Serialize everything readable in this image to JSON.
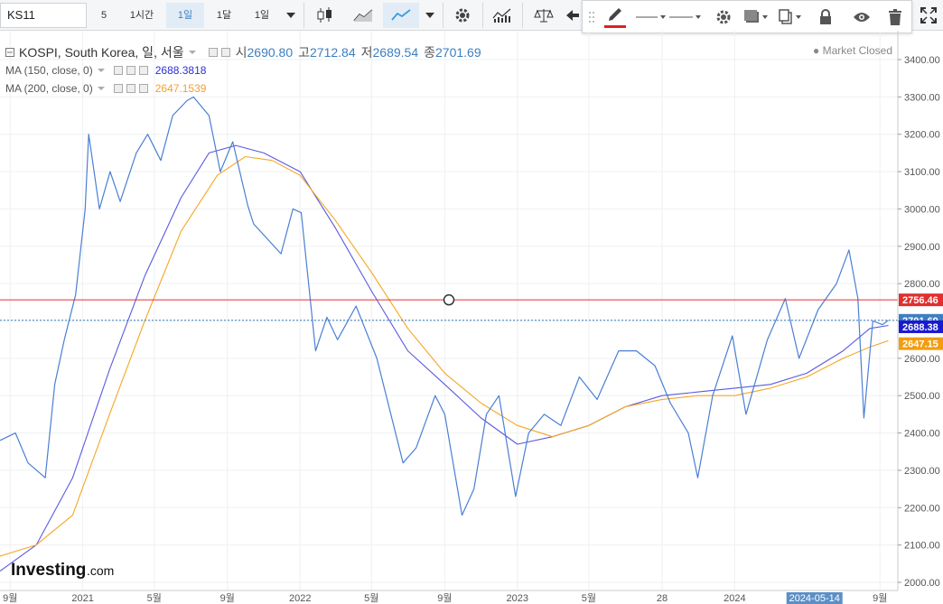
{
  "toolbar": {
    "symbol": "KS11",
    "intervals": [
      "5",
      "1시간",
      "1일",
      "1달",
      "1일"
    ],
    "active_interval_index": 2
  },
  "drawbar": {
    "accent_color": "#e02020"
  },
  "legend": {
    "title": "KOSPI, South Korea, 일, 서울",
    "open_label": "시",
    "open": "2690.80",
    "high_label": "고",
    "high": "2712.84",
    "low_label": "저",
    "low": "2689.54",
    "close_label": "종",
    "close": "2701.69",
    "ma150_label": "MA (150, close, 0)",
    "ma150_value": "2688.3818",
    "ma200_label": "MA (200, close, 0)",
    "ma200_value": "2647.1539",
    "market_status": "Market Closed"
  },
  "colors": {
    "price_line": "#4a7fd4",
    "ma150": "#5a5ae0",
    "ma200": "#f5a623",
    "hline": "#e03030",
    "last_price_bg": "#3c7fc2",
    "ma150_bg": "#1a1ad0",
    "ma200_bg": "#f39c12"
  },
  "brand": {
    "name": "Investing",
    "suffix": ".com"
  },
  "chart_data": {
    "type": "line",
    "x_tick_labels": [
      "9월",
      "2021",
      "5월",
      "9월",
      "2022",
      "5월",
      "9월",
      "2023",
      "5월",
      "28",
      "2024",
      "2024-05-14",
      "9월"
    ],
    "x_tick_dates": [
      "2020-09-01",
      "2021-01-01",
      "2021-05-01",
      "2021-09-01",
      "2022-01-01",
      "2022-05-01",
      "2022-09-01",
      "2023-01-01",
      "2023-05-01",
      "2023-09-01",
      "2024-01-01",
      "2024-05-14",
      "2024-09-01"
    ],
    "x_range": [
      "2020-08-15",
      "2024-10-01"
    ],
    "ylim": [
      2000,
      3450
    ],
    "y_ticks": [
      2000,
      2100,
      2200,
      2300,
      2400,
      2500,
      2600,
      2700,
      2800,
      2900,
      3000,
      3100,
      3200,
      3300,
      3400
    ],
    "y_tick_labels": [
      "2000.00",
      "2100.00",
      "2200.00",
      "2300.00",
      "2400.00",
      "2500.00",
      "2600.00",
      "2700.00",
      "2800.00",
      "2900.00",
      "3000.00",
      "3100.00",
      "3200.00",
      "3300.00",
      "3400.00"
    ],
    "horizontal_line": {
      "value": 2756.46,
      "label": "2756.46"
    },
    "last_price": {
      "value": 2701.69,
      "label": "2701.69"
    },
    "ma150_last": {
      "value": 2688.38,
      "label": "2688.38"
    },
    "ma200_last": {
      "value": 2647.15,
      "label": "2647.15"
    },
    "series": [
      {
        "name": "KOSPI",
        "x": [
          "2020-08-15",
          "2020-09-10",
          "2020-10-01",
          "2020-10-30",
          "2020-11-15",
          "2020-12-01",
          "2020-12-20",
          "2021-01-05",
          "2021-01-11",
          "2021-01-29",
          "2021-02-16",
          "2021-03-05",
          "2021-04-01",
          "2021-04-20",
          "2021-05-12",
          "2021-06-01",
          "2021-06-25",
          "2021-07-06",
          "2021-08-01",
          "2021-08-20",
          "2021-09-10",
          "2021-10-05",
          "2021-10-15",
          "2021-11-30",
          "2021-12-20",
          "2022-01-03",
          "2022-01-27",
          "2022-02-15",
          "2022-03-05",
          "2022-04-05",
          "2022-05-10",
          "2022-06-23",
          "2022-07-15",
          "2022-08-16",
          "2022-09-01",
          "2022-09-30",
          "2022-10-20",
          "2022-11-10",
          "2022-12-01",
          "2022-12-29",
          "2023-01-20",
          "2023-02-15",
          "2023-03-15",
          "2023-04-15",
          "2023-05-15",
          "2023-06-20",
          "2023-07-20",
          "2023-08-20",
          "2023-09-15",
          "2023-10-15",
          "2023-10-31",
          "2023-11-25",
          "2023-12-28",
          "2024-01-20",
          "2024-02-25",
          "2024-03-26",
          "2024-04-18",
          "2024-05-20",
          "2024-06-20",
          "2024-07-11",
          "2024-07-26",
          "2024-08-05",
          "2024-08-20",
          "2024-09-05",
          "2024-09-15"
        ],
        "y": [
          2380,
          2400,
          2320,
          2280,
          2530,
          2650,
          2770,
          3000,
          3200,
          3000,
          3100,
          3020,
          3150,
          3200,
          3130,
          3250,
          3290,
          3300,
          3250,
          3100,
          3180,
          3010,
          2960,
          2880,
          3000,
          2990,
          2620,
          2710,
          2650,
          2740,
          2600,
          2320,
          2360,
          2500,
          2450,
          2180,
          2250,
          2450,
          2500,
          2230,
          2400,
          2450,
          2420,
          2550,
          2490,
          2620,
          2620,
          2580,
          2480,
          2400,
          2280,
          2500,
          2660,
          2450,
          2650,
          2760,
          2600,
          2730,
          2800,
          2890,
          2760,
          2440,
          2700,
          2690,
          2702
        ]
      },
      {
        "name": "MA (150, close, 0)",
        "x": [
          "2020-08-15",
          "2020-10-15",
          "2020-12-15",
          "2021-02-15",
          "2021-04-15",
          "2021-06-15",
          "2021-08-01",
          "2021-09-15",
          "2021-11-01",
          "2022-01-01",
          "2022-03-01",
          "2022-05-01",
          "2022-07-01",
          "2022-09-01",
          "2022-11-01",
          "2023-01-01",
          "2023-03-01",
          "2023-05-01",
          "2023-07-01",
          "2023-09-01",
          "2023-11-01",
          "2024-01-01",
          "2024-03-01",
          "2024-05-01",
          "2024-07-01",
          "2024-08-15",
          "2024-09-15"
        ],
        "y": [
          2030,
          2100,
          2280,
          2570,
          2820,
          3030,
          3150,
          3170,
          3150,
          3100,
          2950,
          2780,
          2620,
          2530,
          2440,
          2370,
          2390,
          2420,
          2470,
          2500,
          2510,
          2520,
          2530,
          2560,
          2620,
          2680,
          2688
        ]
      },
      {
        "name": "MA (200, close, 0)",
        "x": [
          "2020-08-15",
          "2020-10-15",
          "2020-12-15",
          "2021-02-15",
          "2021-04-15",
          "2021-06-15",
          "2021-08-15",
          "2021-10-01",
          "2021-11-15",
          "2022-01-01",
          "2022-03-01",
          "2022-05-01",
          "2022-07-01",
          "2022-09-01",
          "2022-11-01",
          "2023-01-01",
          "2023-03-01",
          "2023-05-01",
          "2023-07-01",
          "2023-09-01",
          "2023-11-01",
          "2024-01-01",
          "2024-03-01",
          "2024-05-01",
          "2024-07-01",
          "2024-08-15",
          "2024-09-15"
        ],
        "y": [
          2070,
          2100,
          2180,
          2450,
          2700,
          2940,
          3090,
          3140,
          3130,
          3090,
          2970,
          2830,
          2680,
          2560,
          2480,
          2420,
          2390,
          2420,
          2470,
          2490,
          2500,
          2500,
          2520,
          2550,
          2600,
          2630,
          2647
        ]
      }
    ]
  }
}
